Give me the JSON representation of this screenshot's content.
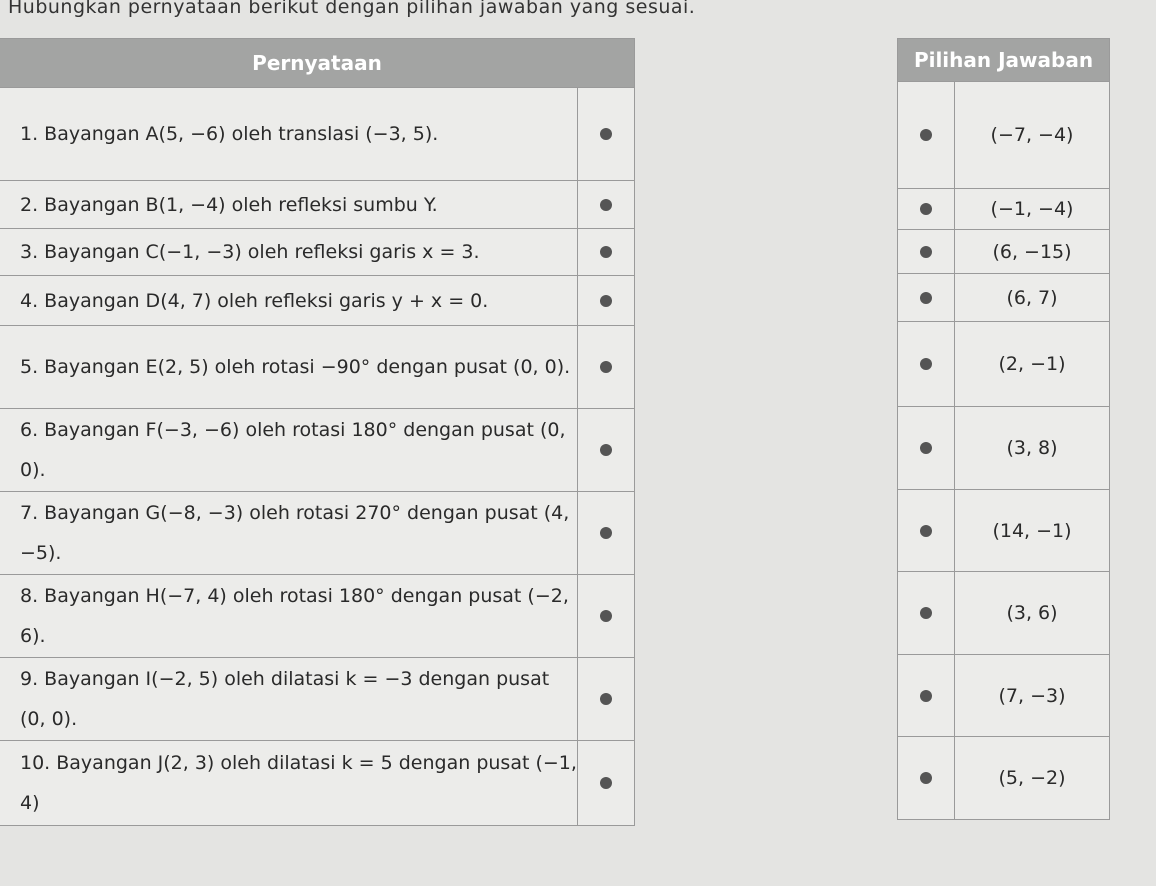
{
  "instruction": "Hubungkan pernyataan berikut dengan pilihan jawaban yang sesuai.",
  "left_table": {
    "header": "Pernyataan",
    "rows": [
      {
        "text": "1. Bayangan A(5, −6) oleh translasi (−3, 5)."
      },
      {
        "text": "2. Bayangan B(1, −4) oleh refleksi sumbu Y."
      },
      {
        "text": "3. Bayangan C(−1, −3) oleh refleksi garis x = 3."
      },
      {
        "text": "4. Bayangan D(4, 7) oleh refleksi garis y + x = 0."
      },
      {
        "text": "5. Bayangan E(2, 5) oleh rotasi −90° dengan pusat (0, 0)."
      },
      {
        "text": "6. Bayangan F(−3, −6) oleh rotasi 180° dengan pusat (0, 0)."
      },
      {
        "text": "7. Bayangan G(−8, −3) oleh rotasi 270° dengan pusat (4, −5)."
      },
      {
        "text": "8. Bayangan H(−7, 4) oleh rotasi 180° dengan pusat (−2, 6)."
      },
      {
        "text": "9. Bayangan I(−2, 5) oleh dilatasi k = −3 dengan pusat (0, 0)."
      },
      {
        "text": "10. Bayangan J(2, 3) oleh dilatasi k = 5 dengan pusat (−1, 4)"
      }
    ]
  },
  "right_table": {
    "header": "Pilihan Jawaban",
    "rows": [
      {
        "answer": "(−7, −4)"
      },
      {
        "answer": "(−1, −4)"
      },
      {
        "answer": "(6, −15)"
      },
      {
        "answer": "(6, 7)"
      },
      {
        "answer": "(2, −1)"
      },
      {
        "answer": "(3, 8)"
      },
      {
        "answer": "(14, −1)"
      },
      {
        "answer": "(3, 6)"
      },
      {
        "answer": "(7, −3)"
      },
      {
        "answer": "(5, −2)"
      }
    ]
  }
}
